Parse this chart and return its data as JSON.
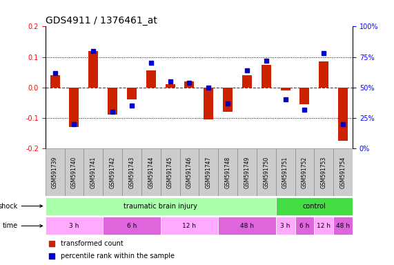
{
  "title": "GDS4911 / 1376461_at",
  "samples": [
    "GSM591739",
    "GSM591740",
    "GSM591741",
    "GSM591742",
    "GSM591743",
    "GSM591744",
    "GSM591745",
    "GSM591746",
    "GSM591747",
    "GSM591748",
    "GSM591749",
    "GSM591750",
    "GSM591751",
    "GSM591752",
    "GSM591753",
    "GSM591754"
  ],
  "red_bars": [
    0.04,
    -0.13,
    0.12,
    -0.09,
    -0.04,
    0.055,
    0.01,
    0.02,
    -0.105,
    -0.08,
    0.04,
    0.075,
    -0.01,
    -0.055,
    0.085,
    -0.175
  ],
  "blue_vals": [
    62,
    20,
    80,
    30,
    35,
    70,
    55,
    54,
    50,
    37,
    64,
    72,
    40,
    32,
    78,
    20
  ],
  "ylim_left": [
    -0.2,
    0.2
  ],
  "ylim_right": [
    0,
    100
  ],
  "yticks_left": [
    -0.2,
    -0.1,
    0.0,
    0.1,
    0.2
  ],
  "yticks_right": [
    0,
    25,
    50,
    75,
    100
  ],
  "ytick_labels_right": [
    "0%",
    "25%",
    "50%",
    "75%",
    "100%"
  ],
  "hlines_dotted": [
    0.1,
    -0.1
  ],
  "hline_zero": 0.0,
  "bar_color": "#CC2200",
  "dot_color": "#0000CC",
  "background_color": "#FFFFFF",
  "zero_line_color": "#CC0000",
  "font_size_title": 10,
  "font_size_ticks": 7,
  "legend_red": "transformed count",
  "legend_blue": "percentile rank within the sample",
  "shock_label": "shock",
  "time_label": "time",
  "shock_groups": [
    {
      "label": "traumatic brain injury",
      "start": 0,
      "end": 12,
      "color": "#AAFFAA"
    },
    {
      "label": "control",
      "start": 12,
      "end": 16,
      "color": "#44DD44"
    }
  ],
  "tbi_time_groups": [
    {
      "label": "3 h",
      "start": 0,
      "end": 3,
      "color": "#FFAAFF"
    },
    {
      "label": "6 h",
      "start": 3,
      "end": 6,
      "color": "#DD66DD"
    },
    {
      "label": "12 h",
      "start": 6,
      "end": 9,
      "color": "#FFAAFF"
    },
    {
      "label": "48 h",
      "start": 9,
      "end": 12,
      "color": "#DD66DD"
    }
  ],
  "ctrl_time_groups": [
    {
      "label": "3 h",
      "start": 12,
      "end": 13,
      "color": "#FFAAFF"
    },
    {
      "label": "6 h",
      "start": 13,
      "end": 14,
      "color": "#DD66DD"
    },
    {
      "label": "12 h",
      "start": 14,
      "end": 15,
      "color": "#FFAAFF"
    },
    {
      "label": "48 h",
      "start": 15,
      "end": 16,
      "color": "#DD66DD"
    }
  ],
  "sample_box_color": "#CCCCCC",
  "sample_box_edge": "#888888"
}
